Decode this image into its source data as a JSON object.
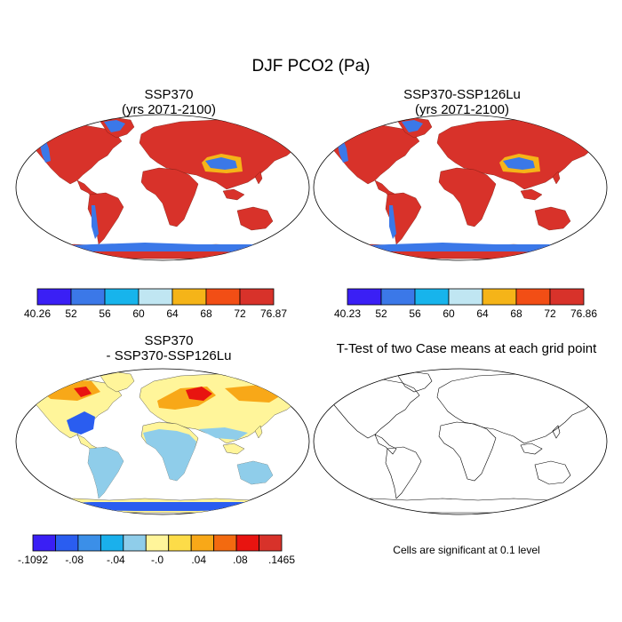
{
  "title": "DJF PCO2 (Pa)",
  "panels": [
    {
      "id": "ssp370",
      "title_lines": [
        "SSP370",
        "(yrs 2071-2100)"
      ],
      "colorbar": {
        "colors": [
          "#3a1ff5",
          "#3b78e8",
          "#17b4ec",
          "#c0e6f2",
          "#f5b418",
          "#f24e15",
          "#d8322a"
        ],
        "labels": [
          "40.26",
          "52",
          "56",
          "60",
          "64",
          "68",
          "72",
          "76.87"
        ]
      }
    },
    {
      "id": "ssp370-ssp126lu",
      "title_lines": [
        "SSP370-SSP126Lu",
        "(yrs 2071-2100)"
      ],
      "colorbar": {
        "colors": [
          "#3a1ff5",
          "#3b78e8",
          "#17b4ec",
          "#c0e6f2",
          "#f5b418",
          "#f24e15",
          "#d8322a"
        ],
        "labels": [
          "40.23",
          "52",
          "56",
          "60",
          "64",
          "68",
          "72",
          "76.86"
        ]
      }
    },
    {
      "id": "difference",
      "title_lines": [
        "SSP370",
        "- SSP370-SSP126Lu"
      ],
      "colorbar": {
        "colors": [
          "#3a1ff5",
          "#2a5df0",
          "#3b8fe8",
          "#1ab0ec",
          "#8fcdea",
          "#fff59a",
          "#fddc48",
          "#f8a818",
          "#f36a10",
          "#e81410",
          "#d8322a"
        ],
        "labels": [
          "-.1092",
          "-.08",
          "-.04",
          "-.0",
          ".04",
          ".08",
          ".1465"
        ]
      }
    },
    {
      "id": "ttest",
      "title_lines": [
        "T-Test of two Case means at each grid point"
      ],
      "note": "Cells are significant at 0.1 level"
    }
  ]
}
